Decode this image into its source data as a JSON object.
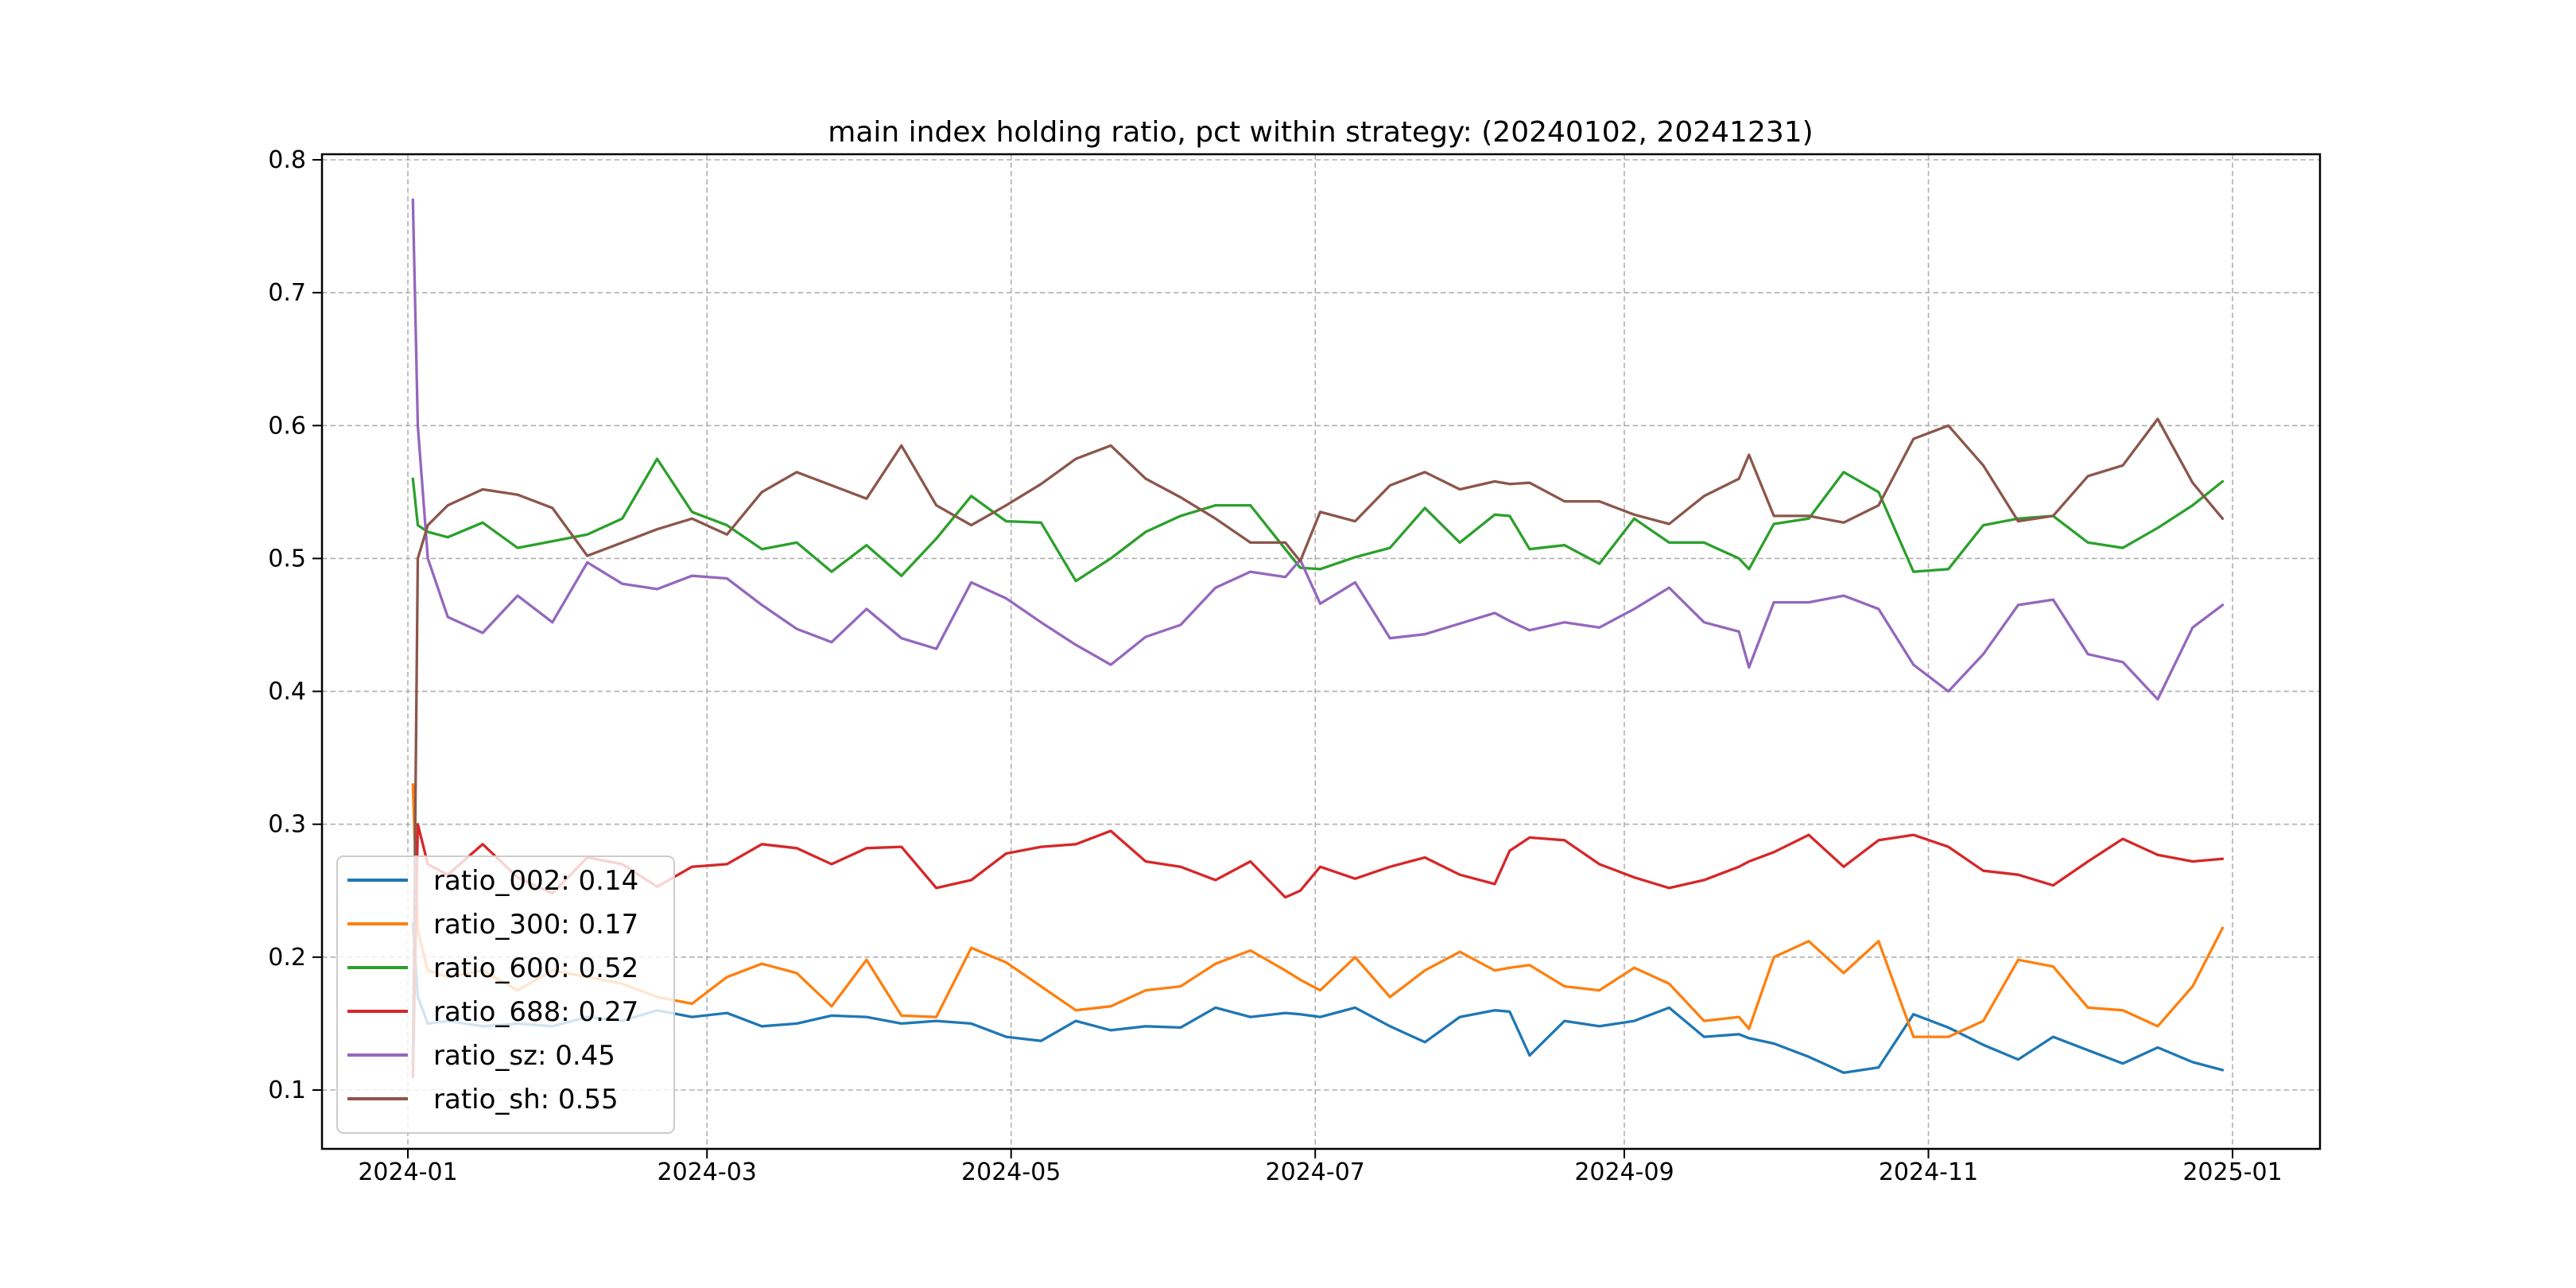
{
  "page": {
    "background": "#ffffff"
  },
  "chart_data": {
    "type": "line",
    "title": "main index holding ratio, pct within strategy: (20240102, 20241231)",
    "xlabel": "",
    "ylabel": "",
    "x_axis": {
      "start_date": "2024-01-01",
      "tick_days": [
        0,
        60,
        121,
        182,
        244,
        305,
        366
      ],
      "tick_labels": [
        "2024-01",
        "2024-03",
        "2024-05",
        "2024-07",
        "2024-09",
        "2024-11",
        "2025-01"
      ]
    },
    "y_axis": {
      "tick_values": [
        0.1,
        0.2,
        0.3,
        0.4,
        0.5,
        0.6,
        0.7,
        0.8
      ],
      "tick_labels": [
        "0.1",
        "0.2",
        "0.3",
        "0.4",
        "0.5",
        "0.6",
        "0.7",
        "0.8"
      ]
    },
    "ylim": [
      0.0557,
      0.8042
    ],
    "xlim_days": [
      -17.2,
      383.6
    ],
    "grid": {
      "visible": true,
      "color": "#b0b0b0",
      "style": "dashed"
    },
    "legend": {
      "position": "lower-left",
      "background_alpha": 0.8,
      "border_color": "#cccccc"
    },
    "x_days": [
      1,
      2,
      4,
      8,
      15,
      22,
      29,
      36,
      43,
      50,
      57,
      64,
      71,
      78,
      85,
      92,
      99,
      106,
      113,
      120,
      127,
      134,
      141,
      148,
      155,
      162,
      169,
      176,
      179,
      183,
      190,
      197,
      204,
      211,
      218,
      221,
      225,
      232,
      239,
      246,
      253,
      260,
      267,
      269,
      274,
      281,
      288,
      295,
      302,
      309,
      316,
      323,
      330,
      337,
      344,
      351,
      358,
      364
    ],
    "series": [
      {
        "name": "ratio_002",
        "legend_label": "ratio_002: 0.14",
        "color": "#1f77b4",
        "values": [
          0.225,
          0.17,
          0.15,
          0.152,
          0.148,
          0.15,
          0.148,
          0.155,
          0.152,
          0.16,
          0.155,
          0.158,
          0.148,
          0.15,
          0.156,
          0.155,
          0.15,
          0.152,
          0.15,
          0.14,
          0.137,
          0.152,
          0.145,
          0.148,
          0.147,
          0.162,
          0.155,
          0.158,
          0.157,
          0.155,
          0.162,
          0.148,
          0.136,
          0.155,
          0.16,
          0.159,
          0.126,
          0.152,
          0.148,
          0.152,
          0.162,
          0.14,
          0.142,
          0.139,
          0.135,
          0.125,
          0.113,
          0.117,
          0.157,
          0.147,
          0.134,
          0.123,
          0.14,
          0.13,
          0.12,
          0.132,
          0.121,
          0.115
        ]
      },
      {
        "name": "ratio_300",
        "legend_label": "ratio_300: 0.17",
        "color": "#ff7f0e",
        "values": [
          0.33,
          0.22,
          0.19,
          0.185,
          0.19,
          0.175,
          0.19,
          0.185,
          0.18,
          0.17,
          0.165,
          0.185,
          0.195,
          0.188,
          0.163,
          0.198,
          0.156,
          0.155,
          0.207,
          0.196,
          0.178,
          0.16,
          0.163,
          0.175,
          0.178,
          0.195,
          0.205,
          0.19,
          0.183,
          0.175,
          0.2,
          0.17,
          0.19,
          0.204,
          0.19,
          0.192,
          0.194,
          0.178,
          0.175,
          0.192,
          0.18,
          0.152,
          0.155,
          0.146,
          0.2,
          0.212,
          0.188,
          0.212,
          0.14,
          0.14,
          0.152,
          0.198,
          0.193,
          0.162,
          0.16,
          0.148,
          0.178,
          0.222
        ]
      },
      {
        "name": "ratio_600",
        "legend_label": "ratio_600: 0.52",
        "color": "#2ca02c",
        "values": [
          0.56,
          0.525,
          0.52,
          0.516,
          0.527,
          0.508,
          0.513,
          0.518,
          0.53,
          0.575,
          0.535,
          0.525,
          0.507,
          0.512,
          0.49,
          0.51,
          0.487,
          0.515,
          0.547,
          0.528,
          0.527,
          0.483,
          0.5,
          0.52,
          0.532,
          0.54,
          0.54,
          0.507,
          0.493,
          0.492,
          0.501,
          0.508,
          0.538,
          0.512,
          0.533,
          0.532,
          0.507,
          0.51,
          0.496,
          0.53,
          0.512,
          0.512,
          0.5,
          0.492,
          0.526,
          0.53,
          0.565,
          0.55,
          0.49,
          0.492,
          0.525,
          0.53,
          0.532,
          0.512,
          0.508,
          0.523,
          0.54,
          0.558
        ]
      },
      {
        "name": "ratio_688",
        "legend_label": "ratio_688: 0.27",
        "color": "#d62728",
        "values": [
          0.11,
          0.3,
          0.27,
          0.262,
          0.285,
          0.26,
          0.248,
          0.275,
          0.27,
          0.253,
          0.268,
          0.27,
          0.285,
          0.282,
          0.27,
          0.282,
          0.283,
          0.252,
          0.258,
          0.278,
          0.283,
          0.285,
          0.295,
          0.272,
          0.268,
          0.258,
          0.272,
          0.245,
          0.25,
          0.268,
          0.259,
          0.268,
          0.275,
          0.262,
          0.255,
          0.28,
          0.29,
          0.288,
          0.27,
          0.26,
          0.252,
          0.258,
          0.268,
          0.272,
          0.279,
          0.292,
          0.268,
          0.288,
          0.292,
          0.283,
          0.265,
          0.262,
          0.254,
          0.272,
          0.289,
          0.277,
          0.272,
          0.274
        ]
      },
      {
        "name": "ratio_sz",
        "legend_label": "ratio_sz: 0.45",
        "color": "#9467bd",
        "values": [
          0.77,
          0.6,
          0.5,
          0.456,
          0.444,
          0.472,
          0.452,
          0.497,
          0.481,
          0.477,
          0.487,
          0.485,
          0.465,
          0.447,
          0.437,
          0.462,
          0.44,
          0.432,
          0.482,
          0.47,
          0.452,
          0.435,
          0.42,
          0.441,
          0.45,
          0.478,
          0.49,
          0.486,
          0.499,
          0.466,
          0.482,
          0.44,
          0.443,
          0.451,
          0.459,
          0.453,
          0.446,
          0.452,
          0.448,
          0.462,
          0.478,
          0.452,
          0.445,
          0.418,
          0.467,
          0.467,
          0.472,
          0.462,
          0.42,
          0.4,
          0.428,
          0.465,
          0.469,
          0.428,
          0.422,
          0.394,
          0.448,
          0.465
        ]
      },
      {
        "name": "ratio_sh",
        "legend_label": "ratio_sh: 0.55",
        "color": "#8c564b",
        "values": [
          0.12,
          0.5,
          0.525,
          0.54,
          0.552,
          0.548,
          0.538,
          0.502,
          0.512,
          0.522,
          0.53,
          0.518,
          0.55,
          0.565,
          0.555,
          0.545,
          0.585,
          0.54,
          0.525,
          0.54,
          0.556,
          0.575,
          0.585,
          0.56,
          0.546,
          0.53,
          0.512,
          0.512,
          0.498,
          0.535,
          0.528,
          0.555,
          0.565,
          0.552,
          0.558,
          0.556,
          0.557,
          0.543,
          0.543,
          0.533,
          0.526,
          0.547,
          0.56,
          0.578,
          0.532,
          0.532,
          0.527,
          0.54,
          0.59,
          0.6,
          0.57,
          0.528,
          0.532,
          0.562,
          0.57,
          0.605,
          0.557,
          0.53
        ]
      }
    ]
  }
}
